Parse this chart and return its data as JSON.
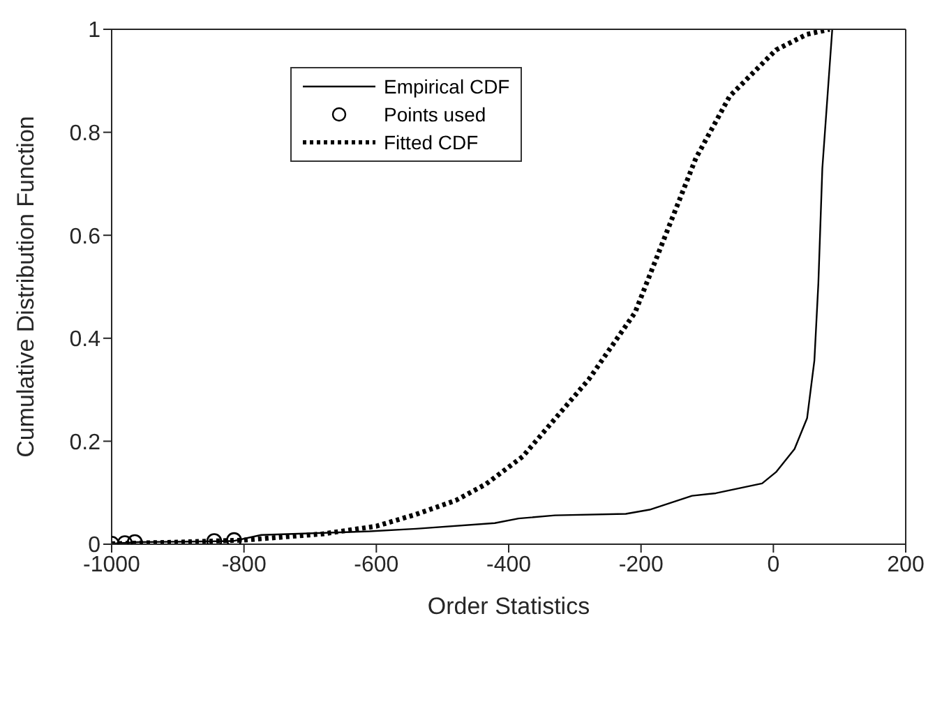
{
  "chart_data": {
    "type": "line",
    "xlabel": "Order Statistics",
    "ylabel": "Cumulative Distribution Function",
    "xlim": [
      -1000,
      200
    ],
    "xticks": [
      -1000,
      -800,
      -600,
      -400,
      -200,
      0,
      200
    ],
    "ylim": [
      0,
      1
    ],
    "yticks": [
      0,
      0.2,
      0.4,
      0.6,
      0.8,
      1
    ],
    "grid": false,
    "legend": "top left",
    "series": [
      {
        "name": "Empirical CDF",
        "color": "#000000",
        "line_style": "solid",
        "marker": "none",
        "x": [
          -1000,
          -960,
          -817,
          -774,
          -610,
          -540,
          -421,
          -385,
          -330,
          -223,
          -187,
          -123,
          -87,
          -17,
          4,
          32,
          51,
          62,
          68,
          74,
          89
        ],
        "values": [
          0.001,
          0.004,
          0.006,
          0.018,
          0.025,
          0.03,
          0.041,
          0.05,
          0.056,
          0.059,
          0.067,
          0.094,
          0.099,
          0.118,
          0.14,
          0.185,
          0.245,
          0.357,
          0.507,
          0.73,
          1.0
        ]
      },
      {
        "name": "Points used",
        "type": "scatter",
        "color": "#000000",
        "marker": "circle",
        "x": [
          -1000,
          -980,
          -965,
          -845,
          -815
        ],
        "values": [
          0.001,
          0.002,
          0.004,
          0.006,
          0.008
        ]
      },
      {
        "name": "Fitted CDF",
        "color": "#000000",
        "line_style": "dotted",
        "marker": "none",
        "x": [
          -1000,
          -900,
          -800,
          -681,
          -600,
          -540,
          -480,
          -434,
          -379,
          -279,
          -209,
          -160,
          -117,
          -66,
          4,
          50,
          85
        ],
        "values": [
          0.001,
          0.004,
          0.008,
          0.02,
          0.035,
          0.058,
          0.085,
          0.117,
          0.17,
          0.32,
          0.45,
          0.61,
          0.75,
          0.87,
          0.96,
          0.99,
          1.0
        ]
      }
    ]
  }
}
